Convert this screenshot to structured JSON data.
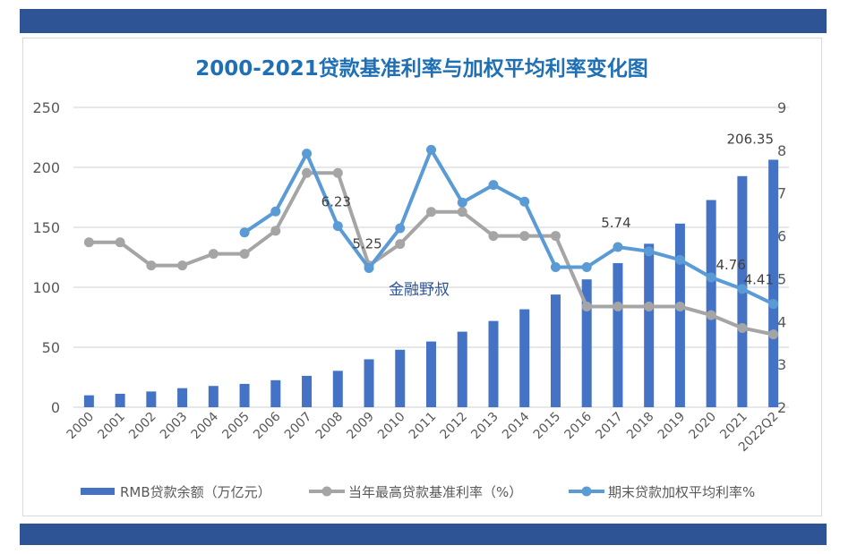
{
  "chart_data": {
    "type": "bar+line",
    "title": "2000-2021贷款基准利率与加权平均利率变化图",
    "categories": [
      "2000",
      "2001",
      "2002",
      "2003",
      "2004",
      "2005",
      "2006",
      "2007",
      "2008",
      "2009",
      "2010",
      "2011",
      "2012",
      "2013",
      "2014",
      "2015",
      "2016",
      "2017",
      "2018",
      "2019",
      "2020",
      "2021",
      "2022Q2"
    ],
    "left_axis": {
      "ylim": [
        0,
        250
      ],
      "ticks": [
        "0",
        "50",
        "100",
        "150",
        "200",
        "250"
      ]
    },
    "right_axis": {
      "ylim": [
        2,
        9
      ],
      "ticks": [
        "2",
        "3",
        "4",
        "5",
        "6",
        "7",
        "8",
        "9"
      ]
    },
    "grid": true,
    "legend_placement": "bottom",
    "series": [
      {
        "name": "RMB贷款余额（万亿元）",
        "type": "bar",
        "axis": "left",
        "color": "#4472c4",
        "values": [
          9.94,
          11.23,
          13.13,
          15.9,
          17.74,
          19.47,
          22.53,
          26.17,
          30.34,
          39.97,
          47.92,
          54.79,
          62.99,
          71.9,
          81.68,
          93.95,
          106.6,
          120.13,
          136.3,
          153.11,
          172.75,
          192.69,
          206.35
        ]
      },
      {
        "name": "当年最高贷款基准利率（%）",
        "type": "line",
        "axis": "right",
        "color": "#a5a5a5",
        "values": [
          5.85,
          5.85,
          5.31,
          5.31,
          5.58,
          5.58,
          6.12,
          7.47,
          7.47,
          5.31,
          5.81,
          6.56,
          6.56,
          6.0,
          6.0,
          6.0,
          4.35,
          4.35,
          4.35,
          4.35,
          4.15,
          3.85,
          3.7
        ]
      },
      {
        "name": "期末贷款加权平均利率%",
        "type": "line",
        "axis": "right",
        "color": "#5b9bd5",
        "values": [
          null,
          null,
          null,
          null,
          null,
          6.08,
          6.57,
          7.92,
          6.23,
          5.25,
          6.18,
          8.01,
          6.78,
          7.19,
          6.8,
          5.27,
          5.27,
          5.74,
          5.64,
          5.44,
          5.03,
          4.76,
          4.41
        ]
      }
    ],
    "data_labels": [
      {
        "series": 0,
        "index": 22,
        "text": "206.35"
      },
      {
        "series": 2,
        "index": 8,
        "text": "6.23"
      },
      {
        "series": 2,
        "index": 9,
        "text": "5.25"
      },
      {
        "series": 2,
        "index": 17,
        "text": "5.74"
      },
      {
        "series": 2,
        "index": 21,
        "text": "4.76"
      },
      {
        "series": 2,
        "index": 22,
        "text": "4.41"
      }
    ],
    "watermark": "金融野叔"
  },
  "colors": {
    "band": "#2f5496",
    "title": "#1f6fb5"
  }
}
